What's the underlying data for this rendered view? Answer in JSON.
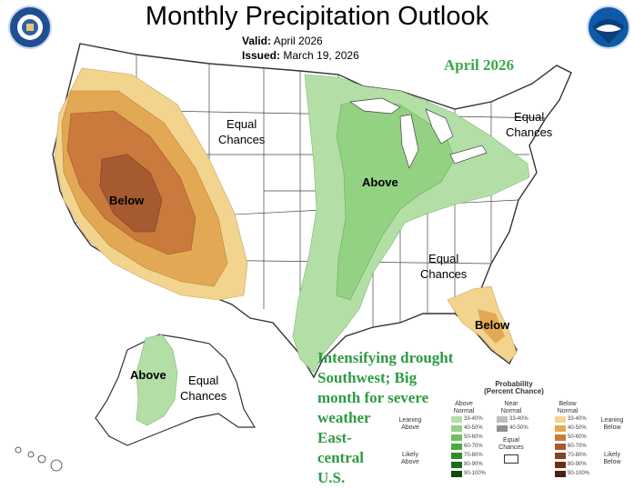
{
  "title": "Monthly Precipitation Outlook",
  "valid_label": "Valid:",
  "valid_value": "April 2026",
  "issued_label": "Issued:",
  "issued_value": "March 19, 2026",
  "month_label": "April 2026",
  "note_lines": [
    "Intensifying drought",
    "Southwest; Big",
    "month for severe",
    "weather",
    "East-",
    "central",
    "U.S."
  ],
  "map_labels": {
    "equal_west": [
      "Equal",
      "Chances"
    ],
    "equal_northeast": [
      "Equal",
      "Chances"
    ],
    "equal_southeast": [
      "Equal",
      "Chances"
    ],
    "equal_alaska": [
      "Equal",
      "Chances"
    ],
    "above_central": "Above",
    "above_alaska": "Above",
    "below_west": "Below",
    "below_florida": "Below"
  },
  "legend": {
    "title": [
      "Probability",
      "(Percent Chance)"
    ],
    "above_header": [
      "Above",
      "Normal"
    ],
    "near_header": [
      "Near",
      "Normal"
    ],
    "below_header": [
      "Below",
      "Normal"
    ],
    "equal_chances": [
      "Equal",
      "Chances"
    ],
    "leaning_above": [
      "Leaning",
      "Above"
    ],
    "likely_above": [
      "Likely",
      "Above"
    ],
    "leaning_below": [
      "Leaning",
      "Below"
    ],
    "likely_below": [
      "Likely",
      "Below"
    ],
    "above_ranges": [
      "33-40%",
      "40-50%",
      "50-60%",
      "60-70%",
      "70-80%",
      "80-90%",
      "90-100%"
    ],
    "near_ranges": [
      "33-40%",
      "40-50%"
    ],
    "below_ranges": [
      "33-40%",
      "40-50%",
      "50-60%",
      "60-70%",
      "70-80%",
      "80-90%",
      "90-100%"
    ],
    "above_colors": [
      "#b3dfa7",
      "#93d183",
      "#6fbf5e",
      "#4caa3f",
      "#2e8d2a",
      "#1d6d1d",
      "#0f4c12"
    ],
    "near_colors": [
      "#bfbfbf",
      "#8f8f8f"
    ],
    "below_colors": [
      "#f2d48f",
      "#e3a853",
      "#c97a3c",
      "#a65a2f",
      "#874224",
      "#6b301b",
      "#4d2012"
    ]
  },
  "logos": {
    "left": "commerce-seal-icon",
    "right": "noaa-logo-icon"
  }
}
